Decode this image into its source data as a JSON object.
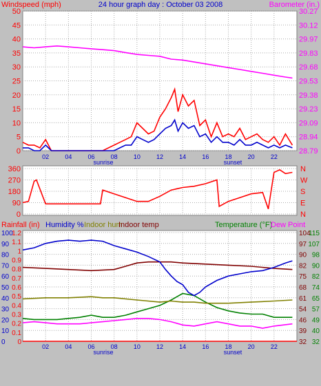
{
  "title": "24 hour graph day : October 03 2008",
  "colors": {
    "background": "#c0c0c0",
    "plot_bg": "#ffffff",
    "wind": "#ff0000",
    "gust": "#ff0000",
    "baro": "#ff00ff",
    "dir": "#ff0000",
    "rain": "#ff0000",
    "humidity": "#0000cc",
    "indoor_hum": "#808000",
    "indoor_temp": "#800000",
    "temperature": "#008000",
    "dewpoint": "#ff00ff",
    "grid": "#aaaaaa",
    "label_blue": "#0000cc"
  },
  "x_ticks": [
    "02",
    "04",
    "06",
    "08",
    "10",
    "12",
    "14",
    "16",
    "18",
    "20",
    "22"
  ],
  "sunrise_label": "sunrise",
  "sunset_label": "sunset",
  "chart_data": [
    {
      "type": "line",
      "title": "24 hour graph day : October 03 2008",
      "left_label": "Windspeed (mph)",
      "right_label": "Barometer (in.)",
      "left_ticks": [
        "0",
        "5",
        "10",
        "15",
        "20",
        "25",
        "30",
        "35",
        "40",
        "45",
        "50"
      ],
      "right_ticks": [
        "28.79",
        "28.94",
        "29.09",
        "29.23",
        "29.38",
        "29.53",
        "29.68",
        "29.83",
        "29.97",
        "30.12",
        "30.27"
      ],
      "ylim_left": [
        0,
        50
      ],
      "ylim_right": [
        28.79,
        30.27
      ],
      "xlim": [
        0,
        24
      ],
      "series": [
        {
          "name": "Barometer",
          "axis": "right",
          "x": [
            0,
            1,
            2,
            3,
            4,
            5,
            6,
            7,
            8,
            9,
            10,
            11,
            12,
            13,
            14,
            15,
            16,
            17,
            18,
            19,
            20,
            21,
            22,
            23,
            23.6
          ],
          "y": [
            29.89,
            29.88,
            29.89,
            29.9,
            29.89,
            29.88,
            29.87,
            29.86,
            29.85,
            29.83,
            29.81,
            29.8,
            29.79,
            29.76,
            29.75,
            29.73,
            29.71,
            29.69,
            29.67,
            29.65,
            29.63,
            29.61,
            29.59,
            29.57,
            29.56
          ]
        },
        {
          "name": "Wind gust",
          "axis": "left",
          "x": [
            0,
            0.5,
            1,
            1.5,
            2,
            2.5,
            3,
            4,
            5,
            6,
            7,
            8,
            8.5,
            9,
            9.5,
            10,
            10.5,
            11,
            11.5,
            12,
            12.5,
            13,
            13.3,
            13.6,
            14,
            14.5,
            15,
            15.5,
            16,
            16.5,
            17,
            17.5,
            18,
            18.5,
            19,
            19.5,
            20,
            20.5,
            21,
            21.5,
            22,
            22.5,
            23,
            23.6
          ],
          "y": [
            3,
            2,
            2,
            1,
            4,
            0,
            0,
            0,
            0,
            0,
            0,
            2,
            3,
            4,
            5,
            10,
            8,
            6,
            7,
            12,
            15,
            19,
            22,
            14,
            20,
            16,
            18,
            9,
            11,
            5,
            10,
            5,
            6,
            5,
            8,
            4,
            5,
            6,
            4,
            3,
            5,
            2,
            6,
            2
          ]
        },
        {
          "name": "Wind speed",
          "axis": "left",
          "x": [
            0,
            0.5,
            1,
            1.5,
            2,
            2.5,
            3,
            4,
            5,
            6,
            7,
            8,
            8.5,
            9,
            9.5,
            10,
            10.5,
            11,
            11.5,
            12,
            12.5,
            13,
            13.3,
            13.6,
            14,
            14.5,
            15,
            15.5,
            16,
            16.5,
            17,
            17.5,
            18,
            18.5,
            19,
            19.5,
            20,
            20.5,
            21,
            21.5,
            22,
            22.5,
            23,
            23.6
          ],
          "y": [
            1,
            1,
            0,
            0,
            2,
            0,
            0,
            0,
            0,
            0,
            0,
            0,
            1,
            2,
            2,
            5,
            4,
            3,
            4,
            6,
            8,
            9,
            11,
            7,
            10,
            8,
            9,
            5,
            6,
            3,
            5,
            3,
            3,
            2,
            4,
            2,
            2,
            3,
            2,
            1,
            2,
            1,
            2,
            1
          ]
        }
      ]
    },
    {
      "type": "line",
      "title": "",
      "left_ticks": [
        "0",
        "90",
        "180",
        "270",
        "360"
      ],
      "right_ticks": [
        "N",
        "E",
        "S",
        "W",
        "N"
      ],
      "ylim": [
        0,
        360
      ],
      "xlim": [
        0,
        24
      ],
      "series": [
        {
          "name": "Wind direction",
          "x": [
            0,
            0.5,
            1,
            1.2,
            2,
            3,
            4,
            5,
            6,
            6.8,
            7,
            8,
            9,
            10,
            11,
            12,
            13,
            14,
            15,
            16,
            17,
            17.2,
            18,
            19,
            20,
            21,
            21.5,
            22,
            22.5,
            23,
            23.6
          ],
          "y": [
            90,
            100,
            260,
            270,
            80,
            80,
            80,
            80,
            80,
            80,
            190,
            160,
            130,
            100,
            100,
            140,
            190,
            210,
            220,
            240,
            270,
            60,
            100,
            130,
            160,
            170,
            40,
            330,
            350,
            320,
            330
          ]
        }
      ]
    },
    {
      "type": "line",
      "title": "",
      "legend": [
        "Rainfall (in)",
        "Humidity %",
        "Indoor hum",
        "Indoor temp",
        "Temperature (°F)",
        "Dew Point"
      ],
      "left_ticks_rain": [
        "0",
        "0.1",
        "0.2",
        "0.3",
        "0.4",
        "0.5",
        "0.6",
        "0.7",
        "0.8",
        "0.9",
        "1",
        "1.1",
        "1.2"
      ],
      "left_ticks_hum": [
        "0",
        "10",
        "20",
        "30",
        "40",
        "50",
        "60",
        "70",
        "80",
        "90",
        "100"
      ],
      "right_ticks_indoor": [
        "32",
        "39",
        "46",
        "54",
        "61",
        "68",
        "75",
        "82",
        "90",
        "97",
        "104"
      ],
      "right_ticks_temp": [
        "32",
        "40",
        "49",
        "57",
        "65",
        "74",
        "82",
        "90",
        "98",
        "107",
        "115"
      ],
      "ylim_humidity": [
        0,
        100
      ],
      "xlim": [
        0,
        24
      ],
      "series": [
        {
          "name": "Rainfall (in)",
          "axis": "rain",
          "x": [
            0,
            24
          ],
          "y": [
            0,
            0
          ]
        },
        {
          "name": "Humidity %",
          "axis": "humidity",
          "x": [
            0,
            1,
            2,
            3,
            4,
            5,
            6,
            7,
            8,
            9,
            10,
            11,
            12,
            12.5,
            13,
            13.5,
            14,
            14.5,
            15,
            15.5,
            16,
            17,
            18,
            19,
            20,
            21,
            22,
            23,
            23.6
          ],
          "y": [
            84,
            86,
            90,
            92,
            93,
            92,
            93,
            92,
            88,
            85,
            82,
            78,
            73,
            66,
            60,
            55,
            52,
            45,
            42,
            45,
            50,
            56,
            60,
            62,
            64,
            65,
            68,
            72,
            74
          ]
        },
        {
          "name": "Indoor hum",
          "axis": "humidity",
          "x": [
            0,
            2,
            4,
            6,
            7,
            8,
            10,
            12,
            13,
            14,
            15,
            16,
            18,
            20,
            22,
            23.6
          ],
          "y": [
            39,
            40,
            40,
            41,
            40,
            40,
            38,
            36,
            37,
            36,
            36,
            35,
            35,
            36,
            37,
            38
          ]
        },
        {
          "name": "Indoor temp",
          "axis": "humidity",
          "x": [
            0,
            2,
            4,
            6,
            8,
            9,
            10,
            11,
            12,
            13,
            14,
            16,
            18,
            20,
            22,
            23.6
          ],
          "y": [
            68,
            67,
            66,
            65,
            66,
            69,
            72,
            73,
            73,
            73,
            72,
            71,
            70,
            69,
            67,
            66
          ]
        },
        {
          "name": "Temperature (°F)",
          "axis": "humidity",
          "x": [
            0,
            1,
            2,
            3,
            4,
            5,
            6,
            7,
            8,
            9,
            10,
            11,
            12,
            13,
            13.5,
            14,
            15,
            16,
            17,
            18,
            19,
            20,
            21,
            22,
            23.6
          ],
          "y": [
            21,
            20,
            20,
            20,
            21,
            22,
            24,
            22,
            22,
            24,
            27,
            30,
            33,
            38,
            41,
            44,
            42,
            36,
            31,
            28,
            26,
            25,
            25,
            22,
            22
          ]
        },
        {
          "name": "Dew Point",
          "axis": "humidity",
          "x": [
            0,
            1,
            2,
            3,
            4,
            5,
            6,
            7,
            8,
            9,
            10,
            11,
            12,
            13,
            14,
            15,
            16,
            17,
            18,
            19,
            20,
            21,
            22,
            23.6
          ],
          "y": [
            17,
            18,
            17,
            16,
            16,
            16,
            17,
            18,
            19,
            20,
            21,
            21,
            20,
            18,
            15,
            14,
            16,
            18,
            16,
            14,
            14,
            12,
            14,
            16
          ]
        }
      ]
    }
  ]
}
